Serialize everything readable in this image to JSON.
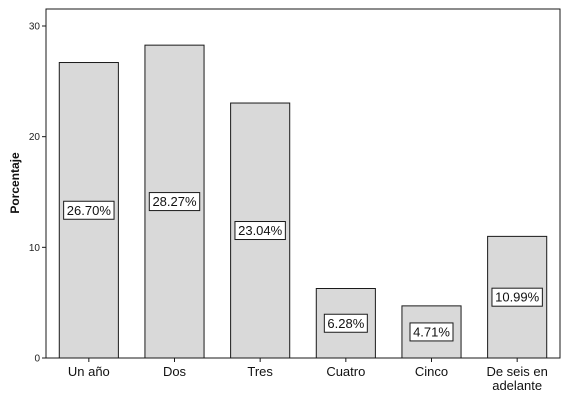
{
  "chart_data": {
    "type": "bar",
    "categories": [
      "Un año",
      "Dos",
      "Tres",
      "Cuatro",
      "Cinco",
      "De seis en adelante"
    ],
    "category_lines": [
      [
        "Un año"
      ],
      [
        "Dos"
      ],
      [
        "Tres"
      ],
      [
        "Cuatro"
      ],
      [
        "Cinco"
      ],
      [
        "De seis en",
        "adelante"
      ]
    ],
    "values": [
      26.7,
      28.27,
      23.04,
      6.28,
      4.71,
      10.99
    ],
    "data_labels": [
      "26.70%",
      "28.27%",
      "23.04%",
      "6.28%",
      "4.71%",
      "10.99%"
    ],
    "title": "",
    "xlabel": "",
    "ylabel": "Porcentaje",
    "ylim": [
      0,
      30
    ],
    "yticks": [
      0,
      10,
      20,
      30
    ],
    "ytick_labels": [
      "0",
      "10",
      "20",
      "30"
    ],
    "grid": false,
    "bar_color": "#d9d9d9",
    "bar_edge_color": "#1a1a1a"
  }
}
